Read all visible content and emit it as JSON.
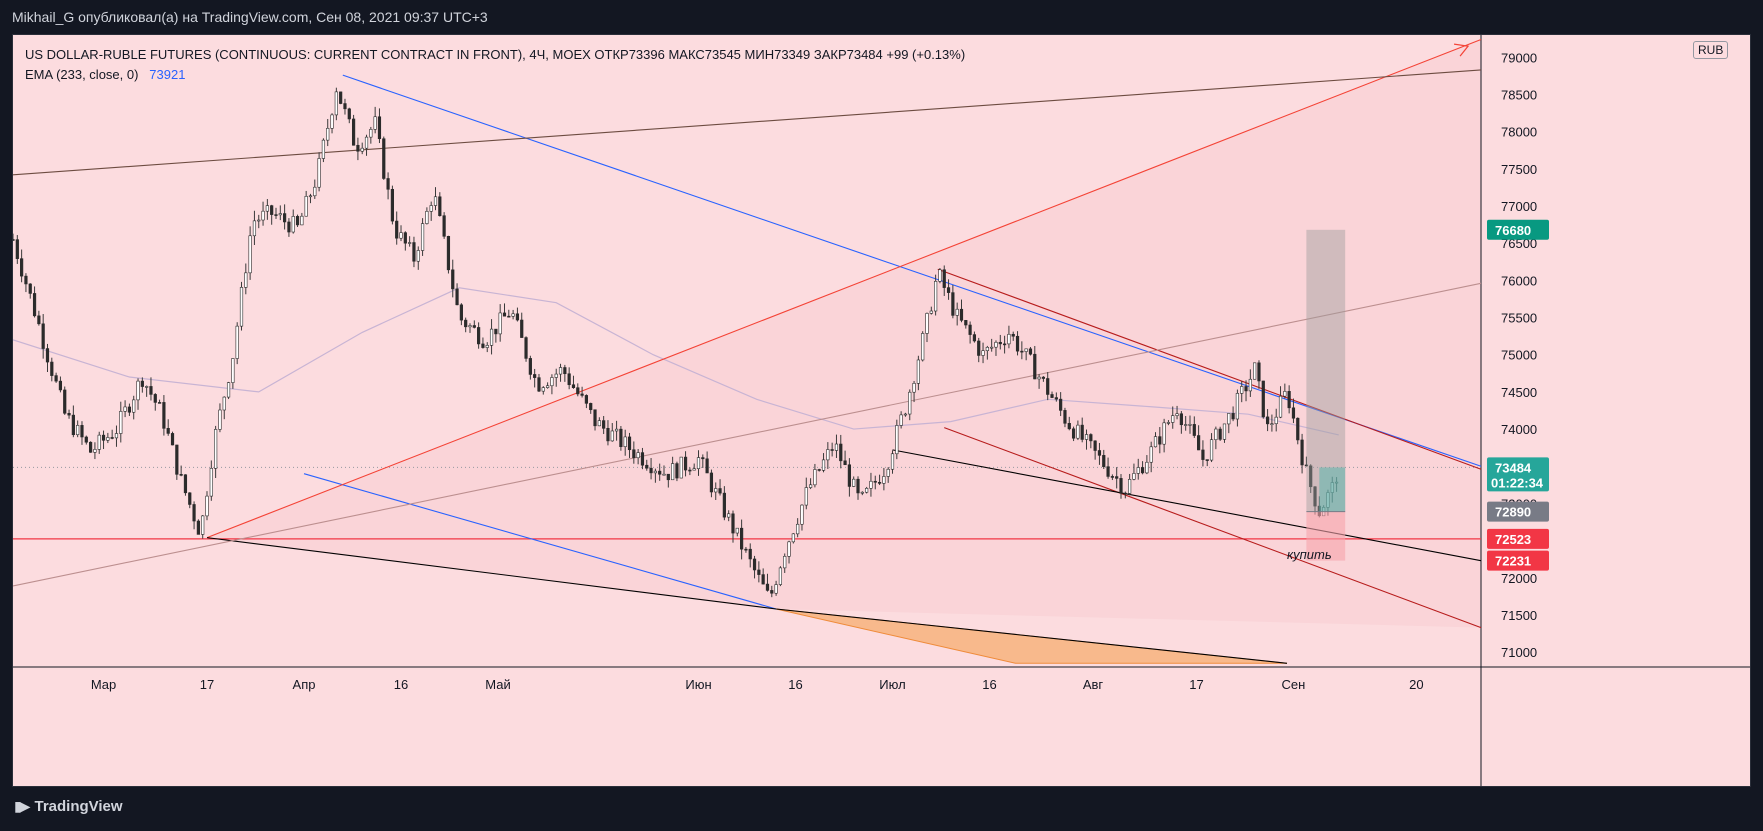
{
  "header": {
    "published_line": "Mikhail_G опубликовал(а) на TradingView.com, Сен 08, 2021 09:37 UTC+3"
  },
  "legend": {
    "symbol_line": "US DOLLAR-RUBLE FUTURES (CONTINUOUS: CURRENT CONTRACT IN FRONT), 4Ч, MOEX  ОТКР73396  МАКС73545  МИН73349  ЗАКР73484  +99 (+0.13%)",
    "ema_label": "EMA (233, close, 0)",
    "ema_value": "73921"
  },
  "currency": "RUB",
  "footer": {
    "brand": "TradingView"
  },
  "annotation": {
    "buy_label": "купить"
  },
  "chart_data": {
    "type": "candlestick",
    "y_axis": {
      "range": [
        70800,
        79300
      ],
      "ticks": [
        71000,
        71500,
        72000,
        72500,
        73000,
        73500,
        74000,
        74500,
        75000,
        75500,
        76000,
        76500,
        77000,
        77500,
        78000,
        78500,
        79000
      ],
      "tick_labels": [
        "71000",
        "71500",
        "72000",
        "72500",
        "73000",
        "73500",
        "74000",
        "74500",
        "75000",
        "75500",
        "76000",
        "76500",
        "77000",
        "77500",
        "78000",
        "78500",
        "79000"
      ]
    },
    "x_axis": {
      "labels": [
        "Мар",
        "17",
        "Апр",
        "16",
        "Май",
        "Июн",
        "16",
        "Июл",
        "16",
        "Авг",
        "17",
        "Сен",
        "20"
      ],
      "label_dates": [
        "2021-03-01",
        "2021-03-17",
        "2021-04-01",
        "2021-04-16",
        "2021-05-01",
        "2021-06-01",
        "2021-06-16",
        "2021-07-01",
        "2021-07-16",
        "2021-08-01",
        "2021-08-17",
        "2021-09-01",
        "2021-09-20"
      ],
      "range": [
        "2021-02-15",
        "2021-09-30"
      ]
    },
    "close_path": [
      [
        "2021-02-15",
        76550
      ],
      [
        "2021-02-19",
        75400
      ],
      [
        "2021-02-23",
        74200
      ],
      [
        "2021-02-27",
        73700
      ],
      [
        "2021-03-03",
        74000
      ],
      [
        "2021-03-07",
        74700
      ],
      [
        "2021-03-10",
        74200
      ],
      [
        "2021-03-13",
        73300
      ],
      [
        "2021-03-16",
        72600
      ],
      [
        "2021-03-18",
        73800
      ],
      [
        "2021-03-21",
        75000
      ],
      [
        "2021-03-24",
        76800
      ],
      [
        "2021-03-27",
        76900
      ],
      [
        "2021-03-31",
        76700
      ],
      [
        "2021-04-03",
        77400
      ],
      [
        "2021-04-06",
        78600
      ],
      [
        "2021-04-09",
        77800
      ],
      [
        "2021-04-12",
        78100
      ],
      [
        "2021-04-15",
        76700
      ],
      [
        "2021-04-18",
        76300
      ],
      [
        "2021-04-21",
        77200
      ],
      [
        "2021-04-25",
        75500
      ],
      [
        "2021-04-29",
        75200
      ],
      [
        "2021-05-03",
        75600
      ],
      [
        "2021-05-07",
        74600
      ],
      [
        "2021-05-11",
        74800
      ],
      [
        "2021-05-16",
        74100
      ],
      [
        "2021-05-22",
        73700
      ],
      [
        "2021-05-27",
        73400
      ],
      [
        "2021-06-01",
        73600
      ],
      [
        "2021-06-05",
        72900
      ],
      [
        "2021-06-09",
        72200
      ],
      [
        "2021-06-12",
        71700
      ],
      [
        "2021-06-14",
        72300
      ],
      [
        "2021-06-18",
        73200
      ],
      [
        "2021-06-22",
        73800
      ],
      [
        "2021-06-26",
        73000
      ],
      [
        "2021-06-30",
        73500
      ],
      [
        "2021-07-03",
        74300
      ],
      [
        "2021-07-06",
        75300
      ],
      [
        "2021-07-08",
        76100
      ],
      [
        "2021-07-11",
        75500
      ],
      [
        "2021-07-15",
        75000
      ],
      [
        "2021-07-19",
        75300
      ],
      [
        "2021-07-23",
        74800
      ],
      [
        "2021-07-28",
        74100
      ],
      [
        "2021-08-02",
        73600
      ],
      [
        "2021-08-06",
        73200
      ],
      [
        "2021-08-10",
        73700
      ],
      [
        "2021-08-14",
        74300
      ],
      [
        "2021-08-18",
        73600
      ],
      [
        "2021-08-23",
        74300
      ],
      [
        "2021-08-26",
        74800
      ],
      [
        "2021-08-28",
        74000
      ],
      [
        "2021-08-31",
        74500
      ],
      [
        "2021-09-03",
        73400
      ],
      [
        "2021-09-05",
        72900
      ],
      [
        "2021-09-07",
        73200
      ],
      [
        "2021-09-08",
        73484
      ]
    ],
    "ema_233": [
      [
        "2021-02-15",
        75200
      ],
      [
        "2021-03-05",
        74700
      ],
      [
        "2021-03-25",
        74500
      ],
      [
        "2021-04-10",
        75300
      ],
      [
        "2021-04-25",
        75900
      ],
      [
        "2021-05-10",
        75700
      ],
      [
        "2021-05-25",
        75000
      ],
      [
        "2021-06-10",
        74400
      ],
      [
        "2021-06-25",
        74000
      ],
      [
        "2021-07-10",
        74100
      ],
      [
        "2021-07-25",
        74400
      ],
      [
        "2021-08-10",
        74300
      ],
      [
        "2021-08-25",
        74200
      ],
      [
        "2021-09-08",
        73921
      ]
    ],
    "drawings": {
      "horizontal_line": 72523,
      "trendlines": [
        {
          "color": "#2962ff",
          "from": [
            "2021-04-07",
            78760
          ],
          "to": [
            "2021-09-30",
            73500
          ]
        },
        {
          "color": "#2962ff",
          "from": [
            "2021-04-01",
            73400
          ],
          "to": [
            "2021-06-13",
            71580
          ]
        },
        {
          "color": "#b71c1c",
          "from": [
            "2021-07-08",
            76150
          ],
          "to": [
            "2021-09-30",
            73460
          ]
        },
        {
          "color": "#b71c1c",
          "from": [
            "2021-07-09",
            74020
          ],
          "to": [
            "2021-09-30",
            71330
          ]
        },
        {
          "color": "#f44336",
          "from": [
            "2021-03-17",
            72540
          ],
          "to": [
            "2021-09-30",
            79240
          ]
        },
        {
          "color": "#000000",
          "from": [
            "2021-03-17",
            72540
          ],
          "to": [
            "2021-06-13",
            71580
          ]
        },
        {
          "color": "#000000",
          "from": [
            "2021-06-13",
            71580
          ],
          "to": [
            "2021-08-31",
            70850
          ]
        },
        {
          "color": "#000000",
          "from": [
            "2021-07-01",
            73720
          ],
          "to": [
            "2021-09-30",
            72230
          ]
        },
        {
          "color": "#6d4c41",
          "from": [
            "2021-02-15",
            77420
          ],
          "to": [
            "2021-09-30",
            78830
          ]
        },
        {
          "color": "#bc8f8f",
          "from": [
            "2021-02-15",
            71890
          ],
          "to": [
            "2021-09-30",
            75960
          ]
        }
      ]
    },
    "position": {
      "entry": 72890,
      "target": 76680,
      "stop": 72231,
      "last_price": 73484
    },
    "price_badges": [
      {
        "value": "76680",
        "color": "#089981"
      },
      {
        "value": "73484",
        "sub": "01:22:34",
        "color": "#26a69a"
      },
      {
        "value": "72890",
        "color": "#787b86"
      },
      {
        "value": "72523",
        "color": "#f23645"
      },
      {
        "value": "72231",
        "color": "#f23645"
      }
    ]
  }
}
